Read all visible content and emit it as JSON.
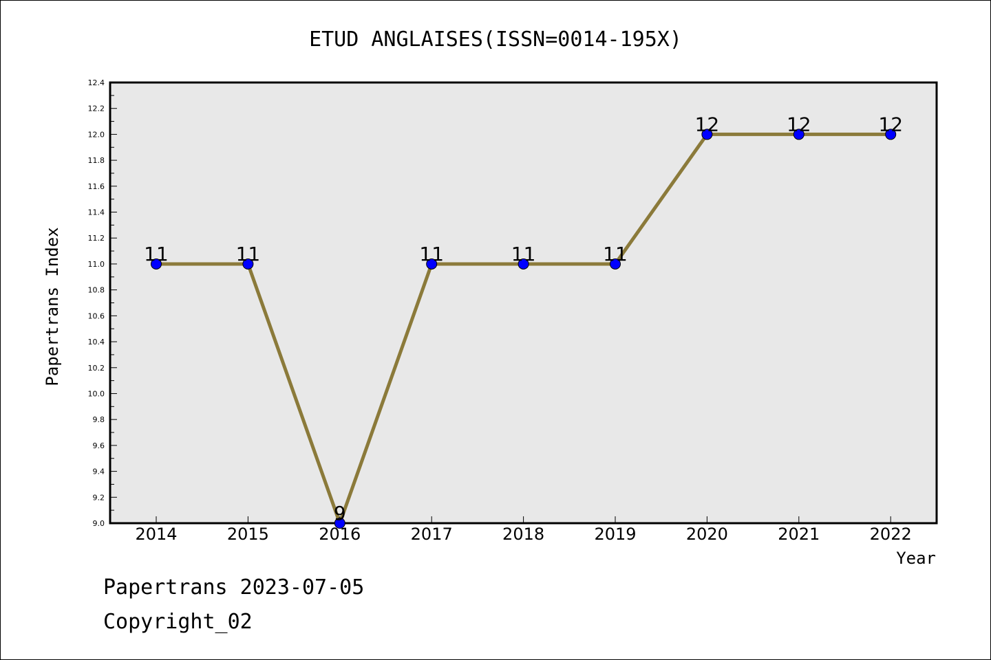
{
  "chart_data": {
    "type": "line",
    "title": "ETUD ANGLAISES(ISSN=0014-195X)",
    "xlabel": "Year",
    "ylabel": "Papertrans Index",
    "x": [
      2014,
      2015,
      2016,
      2017,
      2018,
      2019,
      2020,
      2021,
      2022
    ],
    "series": [
      {
        "values": [
          11,
          11,
          9,
          11,
          11,
          11,
          12,
          12,
          12
        ]
      }
    ],
    "ylim": [
      9.0,
      12.4
    ],
    "yticks": [
      "9.0",
      "9.2",
      "9.4",
      "9.6",
      "9.8",
      "10.0",
      "10.2",
      "10.4",
      "10.6",
      "10.8",
      "11.0",
      "11.2",
      "11.4",
      "11.6",
      "11.8",
      "12.0",
      "12.2",
      "12.4"
    ],
    "grid": false,
    "line_color": "#8b7a3a",
    "marker_color": "#0000ff",
    "plot_background": "#e8e8e8"
  },
  "footer": {
    "line1": "Papertrans 2023-07-05",
    "line2": "Copyright_02"
  }
}
